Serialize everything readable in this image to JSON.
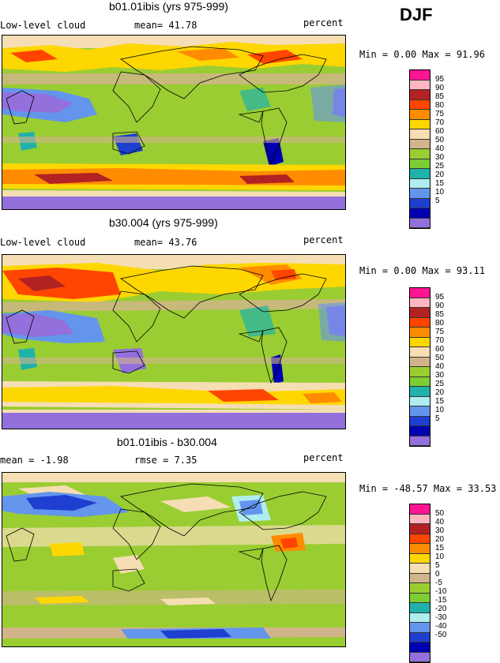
{
  "season": "DJF",
  "panels": [
    {
      "title": "b01.01ibis (yrs 975-999)",
      "left": "Low-level cloud",
      "stat": "mean=  41.78",
      "units": "percent",
      "minmax": "Min =   0.00 Max =  91.96",
      "legend_labels": [
        "95",
        "90",
        "85",
        "80",
        "75",
        "70",
        "60",
        "50",
        "40",
        "30",
        "25",
        "20",
        "15",
        "10",
        "5"
      ]
    },
    {
      "title": "b30.004 (yrs 975-999)",
      "left": "Low-level cloud",
      "stat": "mean=  43.76",
      "units": "percent",
      "minmax": "Min =   0.00 Max =  93.11",
      "legend_labels": [
        "95",
        "90",
        "85",
        "80",
        "75",
        "70",
        "60",
        "50",
        "40",
        "30",
        "25",
        "20",
        "15",
        "10",
        "5"
      ]
    },
    {
      "title": "b01.01ibis - b30.004",
      "left": "mean =  -1.98",
      "stat": "rmse =   7.35",
      "units": "percent",
      "minmax": "Min = -48.57 Max =  33.53",
      "legend_labels": [
        "50",
        "40",
        "30",
        "20",
        "15",
        "10",
        "5",
        "0",
        "-5",
        "-10",
        "-15",
        "-20",
        "-30",
        "-40",
        "-50"
      ]
    }
  ],
  "colors": {
    "scale": [
      "#ff1493",
      "#ffb6c1",
      "#b22222",
      "#ff4500",
      "#ff8c00",
      "#ffd700",
      "#f5deb3",
      "#d2b48c",
      "#9acd32",
      "#7ccd33",
      "#20b2aa",
      "#aeeeee",
      "#6495ed",
      "#1e3fd0",
      "#0000b0",
      "#9370db"
    ]
  }
}
